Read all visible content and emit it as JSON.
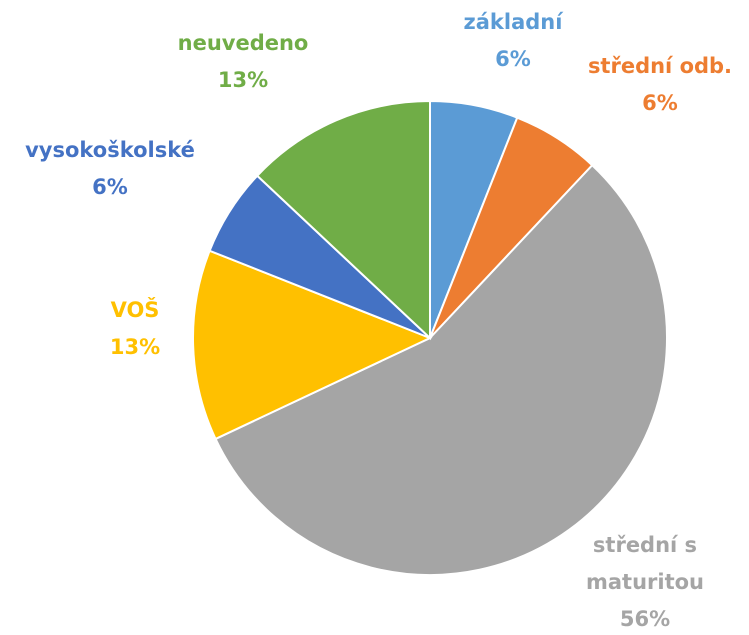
{
  "chart_data": {
    "type": "pie",
    "categories": [
      "základní",
      "střední odb.",
      "střední s maturitou",
      "VOŠ",
      "vysokoškolské",
      "neuvedeno"
    ],
    "values": [
      6,
      6,
      56,
      13,
      6,
      13
    ],
    "value_labels": [
      "6%",
      "6%",
      "56%",
      "13%",
      "6%",
      "13%"
    ],
    "colors": [
      "#5b9bd5",
      "#ed7d31",
      "#a5a5a5",
      "#ffc000",
      "#4472c4",
      "#70ad47"
    ]
  }
}
